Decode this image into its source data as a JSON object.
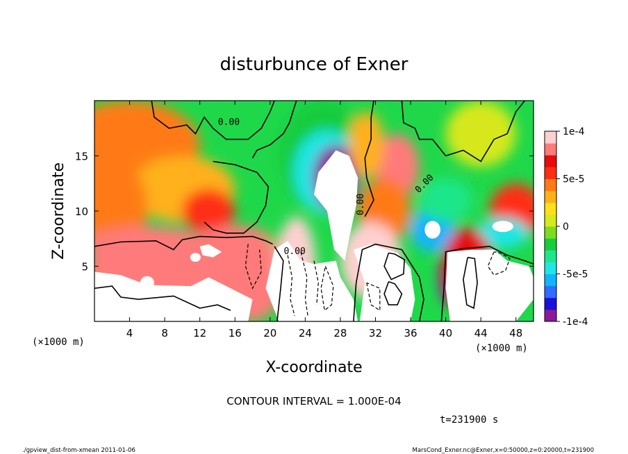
{
  "chart_data": {
    "type": "heatmap",
    "title": "disturbunce of Exner",
    "xlabel": "X-coordinate",
    "ylabel": "Z-coordinate",
    "x_unit_left": "(×1000 m)",
    "x_unit_right": "(×1000 m)",
    "xlim": [
      0,
      50
    ],
    "ylim": [
      0,
      20
    ],
    "x_ticks": [
      4,
      8,
      12,
      16,
      20,
      24,
      28,
      32,
      36,
      40,
      44,
      48
    ],
    "y_ticks": [
      5,
      10,
      15
    ],
    "colorbar": {
      "min": -0.0001,
      "max": 0.0001,
      "tick_values": [
        0.0001,
        5e-05,
        0,
        -5e-05,
        -0.0001
      ],
      "tick_labels": [
        "1e-4",
        "5e-5",
        "0",
        "-5e-5",
        "-1e-4"
      ],
      "colors": [
        "#8a1a9a",
        "#1a10d8",
        "#2f6cff",
        "#12b4ff",
        "#1fe6e6",
        "#1fe68a",
        "#18cc3c",
        "#7cdd1e",
        "#d6e81e",
        "#ffe01a",
        "#ffb01a",
        "#ff7a16",
        "#ff2d12",
        "#e60c0c",
        "#ff7a7a",
        "#ffd0d0"
      ]
    },
    "contour_label": "0.00",
    "contour_interval_text": "CONTOUR INTERVAL = 1.000E-04",
    "time_text": "t=231900 s",
    "features": [
      {
        "x": 27.5,
        "z": 13,
        "value": -0.0001,
        "note": "strong negative core"
      },
      {
        "x": 34.5,
        "z": 14,
        "value": 8e-05,
        "note": "positive maximum"
      },
      {
        "x": 38.5,
        "z": 8.3,
        "value": -0.0001
      },
      {
        "x": 6,
        "z": 10,
        "value": 4e-05
      },
      {
        "x": 48,
        "z": 10,
        "value": 6e-05
      },
      {
        "x": 26,
        "z": 3,
        "value": 0.0002,
        "note": "saturated"
      },
      {
        "x": 32.5,
        "z": 4.5,
        "value": 0.0002,
        "note": "saturated"
      },
      {
        "x": 42.5,
        "z": 3.5,
        "value": 0.0002,
        "note": "saturated"
      },
      {
        "x": 7,
        "z": 3.5,
        "value": 0.0002,
        "note": "saturated"
      }
    ]
  },
  "footer": {
    "left": "./gpview_dist-from-xmean   2011-01-06",
    "right": "MarsCond_Exner.nc@Exner,x=0:50000,z=0:20000,t=231900"
  }
}
